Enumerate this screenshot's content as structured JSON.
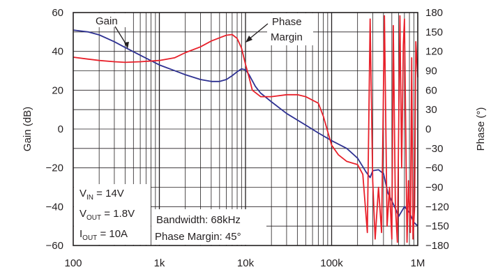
{
  "chart_data": {
    "type": "line",
    "x_scale": "log",
    "xlim": [
      100,
      1000000
    ],
    "x_ticks": [
      100,
      1000,
      10000,
      100000,
      1000000
    ],
    "x_tick_labels": [
      "100",
      "1k",
      "10k",
      "100k",
      "1M"
    ],
    "ylabel": "Gain (dB)",
    "ylim": [
      -60,
      60
    ],
    "y_ticks": [
      60,
      40,
      20,
      0,
      -20,
      -40,
      -60
    ],
    "y_tick_labels": [
      "60",
      "40",
      "20",
      "0",
      "−20",
      "−40",
      "−60"
    ],
    "y2label": "Phase (°)",
    "y2lim": [
      -180,
      180
    ],
    "y2_ticks": [
      180,
      150,
      120,
      90,
      60,
      30,
      0,
      -30,
      -60,
      -90,
      -120,
      -150,
      -180
    ],
    "y2_tick_labels": [
      "180",
      "150",
      "120",
      "90",
      "60",
      "30",
      "0",
      "−30",
      "−60",
      "−90",
      "−120",
      "−150",
      "−180"
    ],
    "grid": true,
    "colors": {
      "gain": "#2e3192",
      "phase": "#e8202a",
      "grid": "#231f20"
    },
    "series": [
      {
        "key": "gain",
        "axis": "left",
        "x": [
          100,
          150,
          200,
          300,
          400,
          600,
          1000,
          2000,
          3000,
          4000,
          5000,
          6000,
          7000,
          8000,
          9000,
          10000,
          11000,
          13000,
          15000,
          20000,
          30000,
          50000,
          70000,
          100000,
          150000,
          200000,
          250000,
          280000,
          300000,
          350000,
          400000,
          450000,
          500000,
          550000,
          600000,
          700000,
          800000,
          900000,
          1000000
        ],
        "y": [
          51,
          50,
          48.5,
          45,
          42,
          38,
          33,
          28,
          25.5,
          24.5,
          24.5,
          25.5,
          27.5,
          29.5,
          31,
          30.5,
          28,
          22,
          18.5,
          14,
          8,
          2,
          -2,
          -6,
          -10,
          -15,
          -22,
          -25,
          -21.5,
          -21,
          -23,
          -33,
          -37,
          -41,
          -45,
          -40,
          -43,
          -48,
          -50
        ]
      },
      {
        "key": "phase",
        "axis": "right",
        "x": [
          100,
          150,
          200,
          300,
          400,
          600,
          1000,
          1500,
          2000,
          3000,
          4000,
          5000,
          6000,
          7000,
          8000,
          9000,
          10000,
          11000,
          12000,
          15000,
          20000,
          30000,
          40000,
          50000,
          70000,
          80000,
          100000,
          120000,
          150000,
          200000,
          230000,
          260000,
          280000,
          300000,
          320000,
          350000,
          380000,
          410000,
          440000,
          470000,
          500000,
          520000,
          550000,
          580000,
          620000,
          650000,
          680000,
          700000,
          750000,
          780000,
          820000,
          850000,
          880000,
          920000,
          950000,
          1000000
        ],
        "y": [
          111,
          108,
          106,
          104,
          103,
          104,
          106,
          110,
          118,
          127,
          136,
          141,
          145,
          146,
          140,
          125,
          100,
          80,
          60,
          50,
          50,
          53,
          53,
          50,
          40,
          20,
          -25,
          -40,
          -50,
          -55,
          -70,
          -160,
          170,
          -80,
          -170,
          -90,
          -160,
          175,
          -150,
          -90,
          -170,
          160,
          -120,
          -175,
          175,
          -60,
          130,
          170,
          -175,
          -80,
          -160,
          110,
          -170,
          -120,
          135,
          80
        ]
      }
    ]
  },
  "annotations": {
    "gain_label": "Gain",
    "phase_label_line1": "Phase",
    "phase_label_line2": "Margin",
    "bandwidth": "Bandwidth: 68kHz",
    "phase_margin": "Phase Margin: 45°",
    "vin_main": "V",
    "vin_sub": "IN",
    "vin_value": " = 14V",
    "vout_main": "V",
    "vout_sub": "OUT",
    "vout_value": " = 1.8V",
    "iout_main": "I",
    "iout_sub": "OUT",
    "iout_value": " = 10A"
  }
}
